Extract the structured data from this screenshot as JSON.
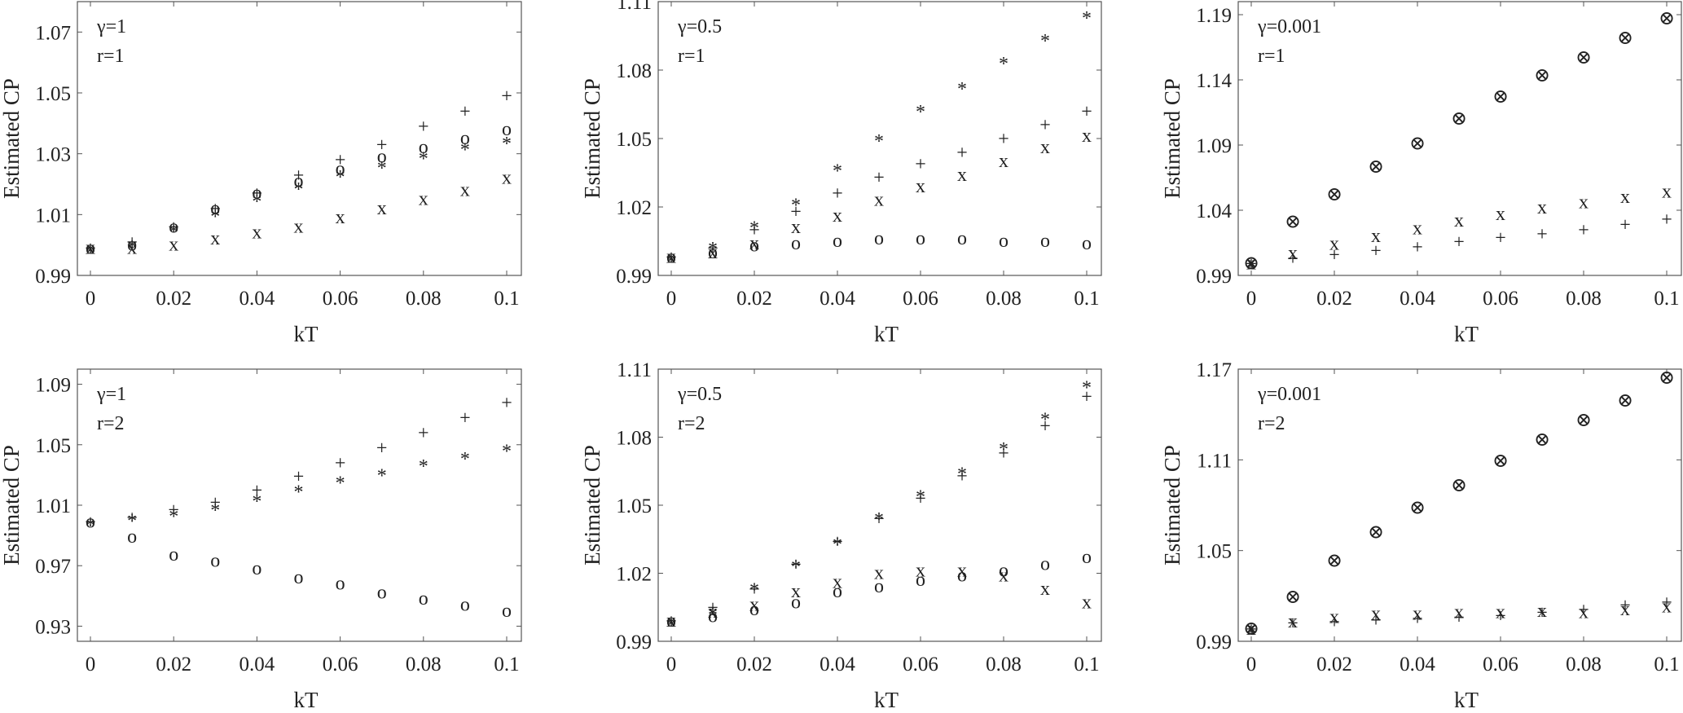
{
  "figure": {
    "xlabel": "kT",
    "ylabel": "Estimated CP"
  },
  "chart_data": [
    {
      "type": "scatter",
      "annotations": [
        "γ=1",
        "r=1"
      ],
      "xlabel": "kT",
      "ylabel": "Estimated CP",
      "xlim": [
        0,
        0.1
      ],
      "ylim": [
        0.99,
        1.08
      ],
      "xticks": [
        "0",
        "0.02",
        "0.04",
        "0.06",
        "0.08",
        "0.1"
      ],
      "yticks": [
        "0.99",
        "1.01",
        "1.03",
        "1.05",
        "1.07"
      ],
      "x": [
        0,
        0.01,
        0.02,
        0.03,
        0.04,
        0.05,
        0.06,
        0.07,
        0.08,
        0.09,
        0.1
      ],
      "series": [
        {
          "marker": "o",
          "values": [
            0.999,
            1.0,
            1.006,
            1.012,
            1.017,
            1.021,
            1.025,
            1.029,
            1.032,
            1.035,
            1.038
          ]
        },
        {
          "marker": "+",
          "values": [
            0.999,
            1.001,
            1.006,
            1.012,
            1.017,
            1.023,
            1.028,
            1.033,
            1.039,
            1.044,
            1.049
          ]
        },
        {
          "marker": "*",
          "values": [
            0.999,
            1.001,
            1.006,
            1.011,
            1.016,
            1.02,
            1.024,
            1.027,
            1.03,
            1.033,
            1.035
          ]
        },
        {
          "marker": "x",
          "values": [
            0.999,
            0.999,
            1.0,
            1.002,
            1.004,
            1.006,
            1.009,
            1.012,
            1.015,
            1.018,
            1.022
          ]
        }
      ]
    },
    {
      "type": "scatter",
      "annotations": [
        "γ=0.5",
        "r=1"
      ],
      "xlabel": "kT",
      "ylabel": "Estimated CP",
      "xlim": [
        0,
        0.1
      ],
      "ylim": [
        0.99,
        1.11
      ],
      "xticks": [
        "0",
        "0.02",
        "0.04",
        "0.06",
        "0.08",
        "0.1"
      ],
      "yticks": [
        "0.99",
        "1.02",
        "1.05",
        "1.08",
        "1.11"
      ],
      "x": [
        0,
        0.01,
        0.02,
        0.03,
        0.04,
        0.05,
        0.06,
        0.07,
        0.08,
        0.09,
        0.1
      ],
      "series": [
        {
          "marker": "o",
          "values": [
            0.998,
            1.0,
            1.003,
            1.004,
            1.005,
            1.006,
            1.006,
            1.006,
            1.005,
            1.005,
            1.004
          ]
        },
        {
          "marker": "+",
          "values": [
            0.998,
            1.002,
            1.01,
            1.018,
            1.026,
            1.033,
            1.039,
            1.044,
            1.05,
            1.056,
            1.062
          ]
        },
        {
          "marker": "*",
          "values": [
            0.998,
            1.004,
            1.013,
            1.023,
            1.038,
            1.051,
            1.064,
            1.074,
            1.085,
            1.095,
            1.105
          ]
        },
        {
          "marker": "x",
          "values": [
            0.998,
            1.0,
            1.004,
            1.011,
            1.016,
            1.023,
            1.029,
            1.034,
            1.04,
            1.046,
            1.051
          ]
        }
      ]
    },
    {
      "type": "scatter",
      "annotations": [
        "γ=0.001",
        "r=1"
      ],
      "xlabel": "kT",
      "ylabel": "Estimated CP",
      "xlim": [
        0,
        0.1
      ],
      "ylim": [
        0.99,
        1.2
      ],
      "xticks": [
        "0",
        "0.02",
        "0.04",
        "0.06",
        "0.08",
        "0.1"
      ],
      "yticks": [
        "0.99",
        "1.04",
        "1.09",
        "1.14",
        "1.19"
      ],
      "x": [
        0,
        0.01,
        0.02,
        0.03,
        0.04,
        0.05,
        0.06,
        0.07,
        0.08,
        0.09,
        0.1
      ],
      "series": [
        {
          "marker": "⊗",
          "values": [
            0.999,
            1.031,
            1.052,
            1.073,
            1.091,
            1.11,
            1.127,
            1.143,
            1.157,
            1.172,
            1.187
          ]
        },
        {
          "marker": "x",
          "values": [
            0.999,
            1.007,
            1.014,
            1.02,
            1.026,
            1.032,
            1.037,
            1.042,
            1.046,
            1.05,
            1.054
          ]
        },
        {
          "marker": "+",
          "values": [
            0.999,
            1.003,
            1.006,
            1.009,
            1.012,
            1.016,
            1.019,
            1.022,
            1.025,
            1.029,
            1.033
          ]
        }
      ]
    },
    {
      "type": "scatter",
      "annotations": [
        "γ=1",
        "r=2"
      ],
      "xlabel": "kT",
      "ylabel": "Estimated CP",
      "xlim": [
        0,
        0.1
      ],
      "ylim": [
        0.92,
        1.1
      ],
      "xticks": [
        "0",
        "0.02",
        "0.04",
        "0.06",
        "0.08",
        "0.1"
      ],
      "yticks": [
        "0.93",
        "0.97",
        "1.01",
        "1.05",
        "1.09"
      ],
      "x": [
        0,
        0.01,
        0.02,
        0.03,
        0.04,
        0.05,
        0.06,
        0.07,
        0.08,
        0.09,
        0.1
      ],
      "series": [
        {
          "marker": "o",
          "values": [
            0.999,
            0.989,
            0.977,
            0.973,
            0.968,
            0.962,
            0.958,
            0.952,
            0.948,
            0.944,
            0.94
          ]
        },
        {
          "marker": "+",
          "values": [
            0.999,
            1.002,
            1.007,
            1.012,
            1.02,
            1.029,
            1.038,
            1.048,
            1.058,
            1.068,
            1.078
          ]
        },
        {
          "marker": "*",
          "values": [
            1.0,
            1.003,
            1.006,
            1.01,
            1.016,
            1.022,
            1.028,
            1.033,
            1.039,
            1.044,
            1.049
          ]
        }
      ]
    },
    {
      "type": "scatter",
      "annotations": [
        "γ=0.5",
        "r=2"
      ],
      "xlabel": "kT",
      "ylabel": "Estimated CP",
      "xlim": [
        0,
        0.1
      ],
      "ylim": [
        0.99,
        1.11
      ],
      "xticks": [
        "0",
        "0.02",
        "0.04",
        "0.06",
        "0.08",
        "0.1"
      ],
      "yticks": [
        "0.99",
        "1.02",
        "1.05",
        "1.08",
        "1.11"
      ],
      "x": [
        0,
        0.01,
        0.02,
        0.03,
        0.04,
        0.05,
        0.06,
        0.07,
        0.08,
        0.09,
        0.1
      ],
      "series": [
        {
          "marker": "o",
          "values": [
            0.999,
            1.001,
            1.004,
            1.007,
            1.012,
            1.014,
            1.017,
            1.019,
            1.021,
            1.024,
            1.027
          ]
        },
        {
          "marker": "+",
          "values": [
            0.999,
            1.005,
            1.013,
            1.024,
            1.034,
            1.044,
            1.053,
            1.063,
            1.073,
            1.085,
            1.098
          ]
        },
        {
          "marker": "*",
          "values": [
            0.999,
            1.004,
            1.015,
            1.025,
            1.035,
            1.046,
            1.056,
            1.066,
            1.077,
            1.09,
            1.104
          ]
        },
        {
          "marker": "x",
          "values": [
            0.999,
            1.003,
            1.006,
            1.012,
            1.016,
            1.02,
            1.021,
            1.021,
            1.019,
            1.013,
            1.007
          ]
        }
      ]
    },
    {
      "type": "scatter",
      "annotations": [
        "γ=0.001",
        "r=2"
      ],
      "xlabel": "kT",
      "ylabel": "Estimated CP",
      "xlim": [
        0,
        0.1
      ],
      "ylim": [
        0.99,
        1.17
      ],
      "xticks": [
        "0",
        "0.02",
        "0.04",
        "0.06",
        "0.08",
        "0.1"
      ],
      "yticks": [
        "0.99",
        "1.05",
        "1.11",
        "1.17"
      ],
      "x": [
        0,
        0.01,
        0.02,
        0.03,
        0.04,
        0.05,
        0.06,
        0.07,
        0.08,
        0.09,
        0.1
      ],
      "series": [
        {
          "marker": "⊗",
          "values": [
            0.998,
            1.019,
            1.043,
            1.062,
            1.078,
            1.093,
            1.109,
            1.123,
            1.136,
            1.149,
            1.164
          ]
        },
        {
          "marker": "x",
          "values": [
            0.998,
            1.003,
            1.006,
            1.008,
            1.008,
            1.009,
            1.009,
            1.01,
            1.009,
            1.011,
            1.013
          ]
        },
        {
          "marker": "+",
          "values": [
            0.998,
            1.002,
            1.003,
            1.004,
            1.005,
            1.006,
            1.007,
            1.009,
            1.011,
            1.014,
            1.016
          ]
        }
      ]
    }
  ]
}
